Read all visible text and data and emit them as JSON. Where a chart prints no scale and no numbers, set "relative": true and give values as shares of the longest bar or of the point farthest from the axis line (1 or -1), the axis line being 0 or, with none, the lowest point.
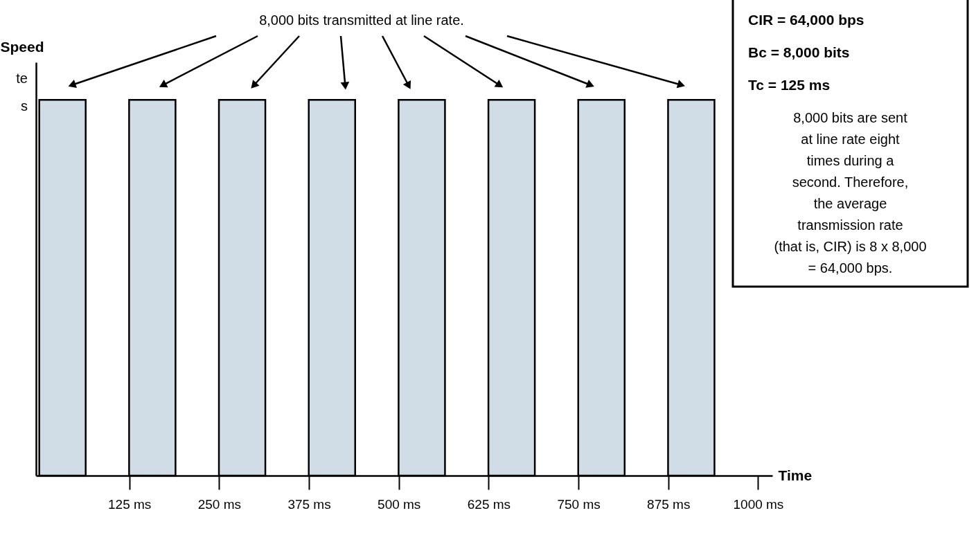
{
  "chart_data": {
    "type": "bar",
    "relative": true,
    "ylabel": "Speed",
    "xlabel": "Time",
    "x": [
      32,
      157,
      282,
      407,
      532,
      657,
      782,
      907
    ],
    "values": [
      1,
      1,
      1,
      1,
      1,
      1,
      1,
      1
    ],
    "color": "#d0dde6",
    "xlim": [
      0,
      1015
    ],
    "xticks": [
      {
        "value": 125,
        "label": "125 ms"
      },
      {
        "value": 250,
        "label": "250 ms"
      },
      {
        "value": 375,
        "label": "375 ms"
      },
      {
        "value": 500,
        "label": "500 ms"
      },
      {
        "value": 625,
        "label": "625 ms"
      },
      {
        "value": 750,
        "label": "750 ms"
      },
      {
        "value": 875,
        "label": "875 ms"
      },
      {
        "value": 1000,
        "label": "1000 ms"
      }
    ],
    "grid": false,
    "annotations": [
      "8,000 bits transmitted at line rate.",
      "te",
      "s",
      "CIR = 64,000 bps",
      "Bc = 8,000 bits",
      "Tc = 125 ms",
      "8,000 bits are sent",
      "at line rate eight",
      "times during a",
      "second. Therefore,",
      "the average",
      "transmission rate",
      "(that is, CIR) is 8 x 8,000",
      "= 64,000 bps."
    ]
  }
}
